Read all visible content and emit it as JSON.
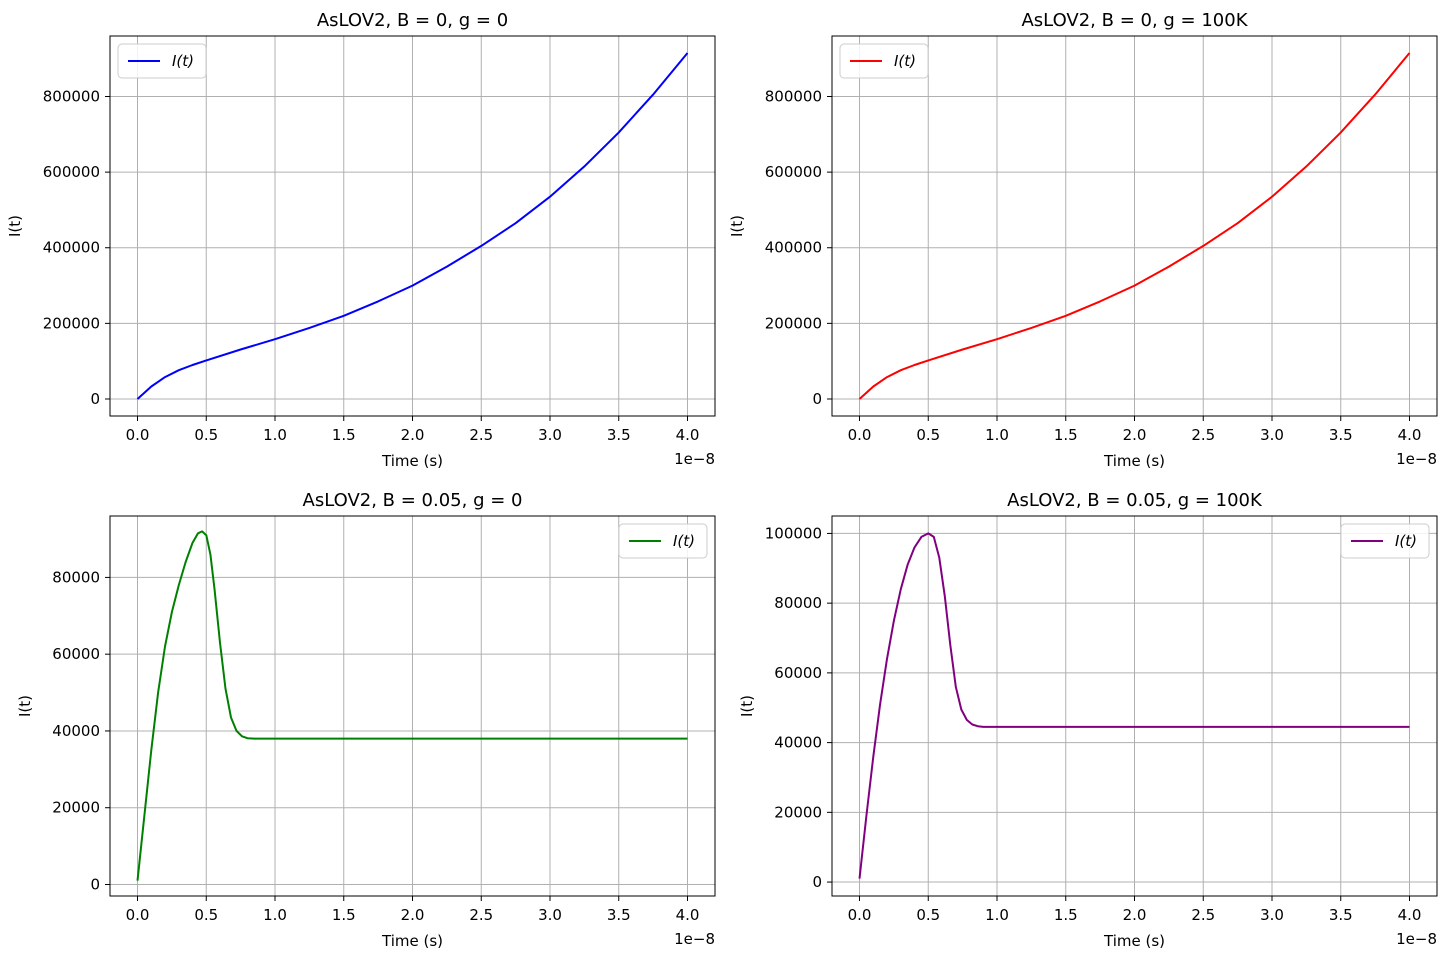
{
  "chart_data": [
    {
      "type": "line",
      "title": "AsLOV2, B = 0, g = 0",
      "xlabel": "Time (s)",
      "ylabel": "I(t)",
      "x_offset_label": "1e−8",
      "xlim": [
        -0.2,
        4.2
      ],
      "ylim": [
        -45000,
        960000
      ],
      "xticks": [
        0.0,
        0.5,
        1.0,
        1.5,
        2.0,
        2.5,
        3.0,
        3.5,
        4.0
      ],
      "xtick_labels": [
        "0.0",
        "0.5",
        "1.0",
        "1.5",
        "2.0",
        "2.5",
        "3.0",
        "3.5",
        "4.0"
      ],
      "yticks": [
        0,
        200000,
        400000,
        600000,
        800000
      ],
      "ytick_labels": [
        "0",
        "200000",
        "400000",
        "600000",
        "800000"
      ],
      "grid": true,
      "legend": "upper left",
      "series": [
        {
          "name": "I(t)",
          "color": "#0000ff",
          "x": [
            0.0,
            0.1,
            0.2,
            0.3,
            0.4,
            0.5,
            0.75,
            1.0,
            1.25,
            1.5,
            1.75,
            2.0,
            2.25,
            2.5,
            2.75,
            3.0,
            3.25,
            3.5,
            3.75,
            4.0
          ],
          "y": [
            0,
            33000,
            58000,
            76000,
            90000,
            102000,
            131000,
            158000,
            188000,
            220000,
            258000,
            300000,
            350000,
            405000,
            465000,
            535000,
            615000,
            705000,
            805000,
            915000
          ]
        }
      ]
    },
    {
      "type": "line",
      "title": "AsLOV2, B = 0, g = 100K",
      "xlabel": "Time (s)",
      "ylabel": "I(t)",
      "x_offset_label": "1e−8",
      "xlim": [
        -0.2,
        4.2
      ],
      "ylim": [
        -45000,
        960000
      ],
      "xticks": [
        0.0,
        0.5,
        1.0,
        1.5,
        2.0,
        2.5,
        3.0,
        3.5,
        4.0
      ],
      "xtick_labels": [
        "0.0",
        "0.5",
        "1.0",
        "1.5",
        "2.0",
        "2.5",
        "3.0",
        "3.5",
        "4.0"
      ],
      "yticks": [
        0,
        200000,
        400000,
        600000,
        800000
      ],
      "ytick_labels": [
        "0",
        "200000",
        "400000",
        "600000",
        "800000"
      ],
      "grid": true,
      "legend": "upper left",
      "series": [
        {
          "name": "I(t)",
          "color": "#ff0000",
          "x": [
            0.0,
            0.1,
            0.2,
            0.3,
            0.4,
            0.5,
            0.75,
            1.0,
            1.25,
            1.5,
            1.75,
            2.0,
            2.25,
            2.5,
            2.75,
            3.0,
            3.25,
            3.5,
            3.75,
            4.0
          ],
          "y": [
            0,
            33000,
            58000,
            76000,
            90000,
            102000,
            131000,
            158000,
            188000,
            220000,
            258000,
            300000,
            350000,
            405000,
            465000,
            535000,
            615000,
            705000,
            805000,
            915000
          ]
        }
      ]
    },
    {
      "type": "line",
      "title": "AsLOV2, B = 0.05, g = 0",
      "xlabel": "Time (s)",
      "ylabel": "I(t)",
      "x_offset_label": "1e−8",
      "xlim": [
        -0.2,
        4.2
      ],
      "ylim": [
        -3000,
        96000
      ],
      "xticks": [
        0.0,
        0.5,
        1.0,
        1.5,
        2.0,
        2.5,
        3.0,
        3.5,
        4.0
      ],
      "xtick_labels": [
        "0.0",
        "0.5",
        "1.0",
        "1.5",
        "2.0",
        "2.5",
        "3.0",
        "3.5",
        "4.0"
      ],
      "yticks": [
        0,
        20000,
        40000,
        60000,
        80000
      ],
      "ytick_labels": [
        "0",
        "20000",
        "40000",
        "60000",
        "80000"
      ],
      "grid": true,
      "legend": "upper right",
      "series": [
        {
          "name": "I(t)",
          "color": "#008000",
          "x": [
            0.0,
            0.05,
            0.1,
            0.15,
            0.2,
            0.25,
            0.3,
            0.35,
            0.4,
            0.44,
            0.47,
            0.5,
            0.53,
            0.56,
            0.6,
            0.64,
            0.68,
            0.72,
            0.76,
            0.8,
            0.85,
            0.9,
            1.0,
            1.5,
            2.0,
            2.5,
            3.0,
            3.5,
            4.0
          ],
          "y": [
            1000,
            18000,
            35000,
            50000,
            62000,
            71000,
            78000,
            84000,
            89000,
            91500,
            92000,
            91000,
            86000,
            77000,
            63000,
            51000,
            43500,
            40000,
            38600,
            38100,
            38000,
            38000,
            38000,
            38000,
            38000,
            38000,
            38000,
            38000,
            38000
          ]
        }
      ]
    },
    {
      "type": "line",
      "title": "AsLOV2, B = 0.05, g = 100K",
      "xlabel": "Time (s)",
      "ylabel": "I(t)",
      "x_offset_label": "1e−8",
      "xlim": [
        -0.2,
        4.2
      ],
      "ylim": [
        -4000,
        105000
      ],
      "xticks": [
        0.0,
        0.5,
        1.0,
        1.5,
        2.0,
        2.5,
        3.0,
        3.5,
        4.0
      ],
      "xtick_labels": [
        "0.0",
        "0.5",
        "1.0",
        "1.5",
        "2.0",
        "2.5",
        "3.0",
        "3.5",
        "4.0"
      ],
      "yticks": [
        0,
        20000,
        40000,
        60000,
        80000,
        100000
      ],
      "ytick_labels": [
        "0",
        "20000",
        "40000",
        "60000",
        "80000",
        "100000"
      ],
      "grid": true,
      "legend": "upper right",
      "series": [
        {
          "name": "I(t)",
          "color": "#800080",
          "x": [
            0.0,
            0.05,
            0.1,
            0.15,
            0.2,
            0.25,
            0.3,
            0.35,
            0.4,
            0.45,
            0.5,
            0.54,
            0.58,
            0.62,
            0.66,
            0.7,
            0.74,
            0.78,
            0.82,
            0.86,
            0.9,
            0.95,
            1.0,
            1.5,
            2.0,
            2.5,
            3.0,
            3.5,
            4.0
          ],
          "y": [
            1000,
            19000,
            36000,
            51000,
            64000,
            75000,
            84000,
            91000,
            96000,
            99000,
            100000,
            99000,
            93000,
            82000,
            68000,
            56000,
            49500,
            46500,
            45200,
            44700,
            44500,
            44500,
            44500,
            44500,
            44500,
            44500,
            44500,
            44500,
            44500
          ]
        }
      ]
    }
  ]
}
